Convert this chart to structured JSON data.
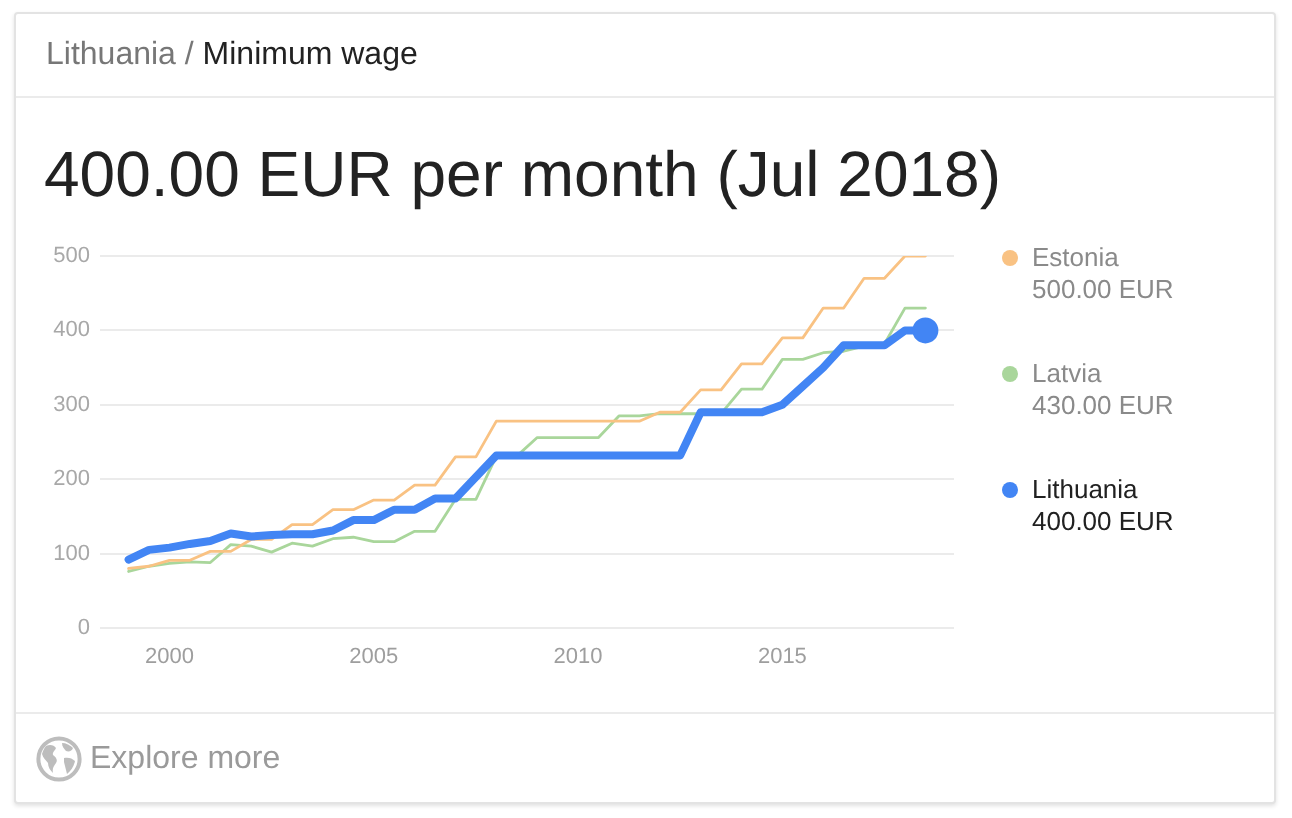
{
  "chart_data": {
    "type": "line",
    "subtitle": "Lithuania / Minimum wage",
    "title": "400.00 EUR per month (Jul 2018)",
    "x": [
      1999,
      1999.5,
      2000,
      2000.5,
      2001,
      2001.5,
      2002,
      2002.5,
      2003,
      2003.5,
      2004,
      2004.5,
      2005,
      2005.5,
      2006,
      2006.5,
      2007,
      2007.5,
      2008,
      2008.5,
      2009,
      2009.5,
      2010,
      2010.5,
      2011,
      2011.5,
      2012,
      2012.5,
      2013,
      2013.5,
      2014,
      2014.5,
      2015,
      2015.5,
      2016,
      2016.5,
      2017,
      2017.5,
      2018,
      2018.5
    ],
    "series": [
      {
        "name": "Estonia",
        "color": "#f9c283",
        "values": [
          80,
          83,
          91,
          91,
          103,
          103,
          119,
          119,
          139,
          139,
          159,
          159,
          172,
          172,
          192,
          192,
          230,
          230,
          278,
          278,
          278,
          278,
          278,
          278,
          278,
          278,
          290,
          290,
          320,
          320,
          355,
          355,
          390,
          390,
          430,
          430,
          470,
          470,
          500,
          500
        ]
      },
      {
        "name": "Latvia",
        "color": "#a9d69b",
        "values": [
          76,
          83,
          87,
          89,
          88,
          112,
          110,
          102,
          114,
          110,
          120,
          122,
          116,
          116,
          130,
          130,
          173,
          173,
          231,
          231,
          256,
          256,
          256,
          256,
          285,
          285,
          288,
          288,
          288,
          288,
          321,
          321,
          361,
          361,
          370,
          372,
          379,
          382,
          430,
          430
        ]
      },
      {
        "name": "Lithuania",
        "color": "#4285f4",
        "values": [
          92,
          105,
          108,
          113,
          117,
          127,
          123,
          125,
          126,
          126,
          131,
          145,
          145,
          159,
          159,
          174,
          174,
          203,
          232,
          232,
          232,
          232,
          232,
          232,
          232,
          232,
          232,
          232,
          290,
          290,
          290,
          290,
          300,
          325,
          350,
          380,
          380,
          380,
          400,
          400
        ]
      },
      {
        "type": "scatter",
        "color": "#4285f4",
        "marker": "circle",
        "x": [
          2018.5
        ],
        "values": [
          400
        ]
      }
    ],
    "xlim": [
      1998.3,
      2019.2
    ],
    "xticks": [
      2000,
      2005,
      2010,
      2015
    ],
    "ylim": [
      0,
      500
    ],
    "yticks": [
      0,
      100,
      200,
      300,
      400,
      500
    ],
    "grid": "y",
    "legend": "top right",
    "annotations": [
      "500.00 EUR",
      "430.00 EUR",
      "400.00 EUR",
      "Explore more"
    ]
  }
}
